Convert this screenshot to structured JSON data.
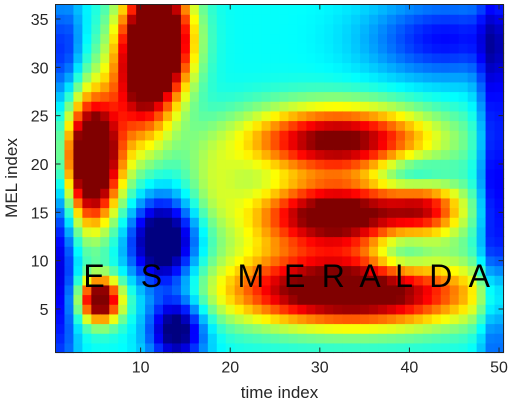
{
  "chart_data": {
    "type": "heatmap",
    "title": "",
    "xlabel": "time index",
    "ylabel": "MEL index",
    "xlim": [
      0.5,
      50.5
    ],
    "ylim": [
      0.5,
      36.5
    ],
    "xticks": [
      10,
      20,
      30,
      40,
      50
    ],
    "yticks": [
      5,
      10,
      15,
      20,
      25,
      30,
      35
    ],
    "colormap": "jet",
    "n_time": 50,
    "n_mel": 36,
    "value_range": [
      0,
      1
    ],
    "grid": false,
    "legend": "none",
    "blobs": [
      {
        "t": 4.5,
        "m": 20.5,
        "st": 2.2,
        "sm": 4.5,
        "a": 0.95
      },
      {
        "t": 12.0,
        "m": 33.0,
        "st": 2.5,
        "sm": 4.0,
        "a": 0.95
      },
      {
        "t": 10.0,
        "m": 28.0,
        "st": 2.5,
        "sm": 5.0,
        "a": 0.45
      },
      {
        "t": 5.5,
        "m": 6.0,
        "st": 1.6,
        "sm": 1.6,
        "a": 0.75
      },
      {
        "t": 32.0,
        "m": 22.5,
        "st": 7.5,
        "sm": 2.5,
        "a": 0.65
      },
      {
        "t": 32.0,
        "m": 15.0,
        "st": 6.5,
        "sm": 2.3,
        "a": 0.65
      },
      {
        "t": 42.0,
        "m": 15.5,
        "st": 3.0,
        "sm": 2.0,
        "a": 0.35
      },
      {
        "t": 34.0,
        "m": 6.5,
        "st": 10.0,
        "sm": 2.4,
        "a": 0.65
      },
      {
        "t": 30.0,
        "m": 10.0,
        "st": 8.0,
        "sm": 3.0,
        "a": 0.25
      },
      {
        "t": 12.5,
        "m": 12.0,
        "st": 2.6,
        "sm": 3.2,
        "a": -0.55
      },
      {
        "t": 14.0,
        "m": 3.0,
        "st": 2.2,
        "sm": 2.5,
        "a": -0.45
      },
      {
        "t": 39.0,
        "m": 11.0,
        "st": 2.5,
        "sm": 1.8,
        "a": -0.2
      },
      {
        "t": 40.0,
        "m": 19.0,
        "st": 3.0,
        "sm": 1.5,
        "a": -0.2
      },
      {
        "t": 44.0,
        "m": 33.0,
        "st": 6.0,
        "sm": 3.0,
        "a": -0.25
      },
      {
        "t": 49.5,
        "m": 18.0,
        "st": 1.2,
        "sm": 16.0,
        "a": -0.3
      },
      {
        "t": 1.0,
        "m": 10.0,
        "st": 1.3,
        "sm": 10.0,
        "a": -0.3
      },
      {
        "t": 1.5,
        "m": 32.0,
        "st": 1.5,
        "sm": 4.0,
        "a": -0.2
      },
      {
        "t": 18.0,
        "m": 18.0,
        "st": 2.5,
        "sm": 3.0,
        "a": 0.15
      }
    ],
    "base_level": 0.38,
    "annotations": [
      {
        "text": "E",
        "x": 4.8,
        "y": 7.3
      },
      {
        "text": "S",
        "x": 11.2,
        "y": 7.3
      },
      {
        "text": "M",
        "x": 22.3,
        "y": 7.3
      },
      {
        "text": "E",
        "x": 27.2,
        "y": 7.3
      },
      {
        "text": "R",
        "x": 31.5,
        "y": 7.3
      },
      {
        "text": "A",
        "x": 35.6,
        "y": 7.3
      },
      {
        "text": "L",
        "x": 39.4,
        "y": 7.3
      },
      {
        "text": "D",
        "x": 43.5,
        "y": 7.3
      },
      {
        "text": "A",
        "x": 47.8,
        "y": 7.3
      }
    ]
  }
}
